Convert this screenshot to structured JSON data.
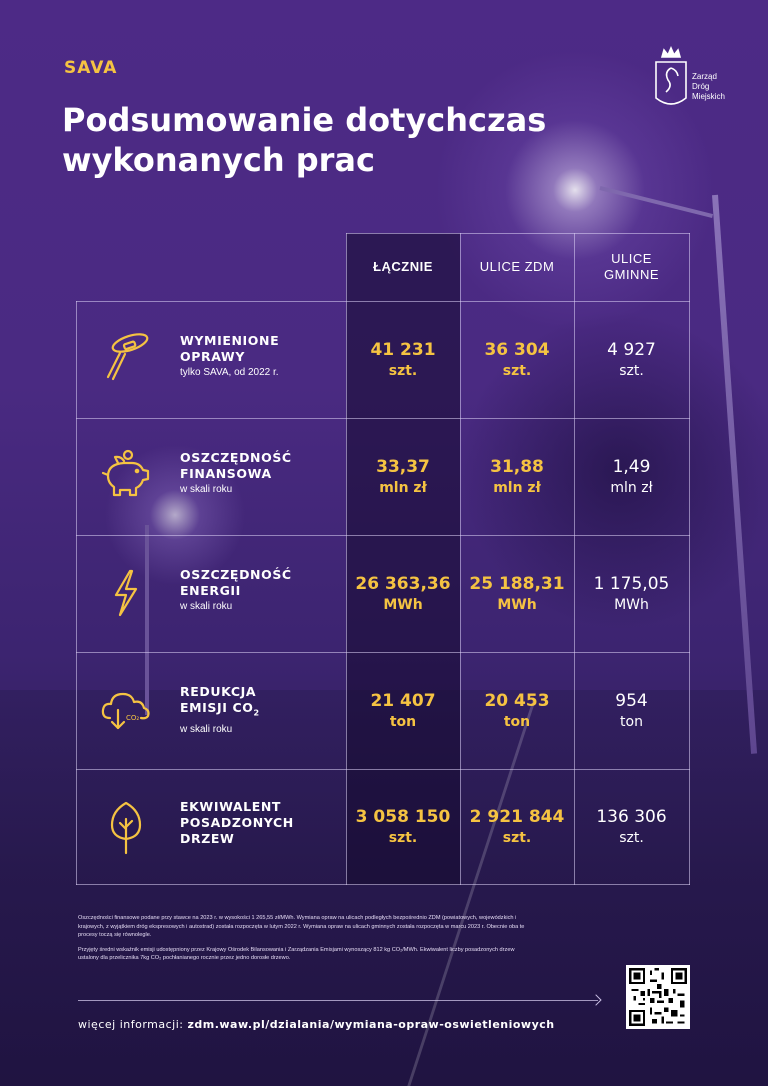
{
  "brand": "SAVA",
  "title_line1": "Podsumowanie dotychczas",
  "title_line2": "wykonanych prac",
  "logo": {
    "line1": "Zarząd",
    "line2": "Dróg",
    "line3": "Miejskich"
  },
  "columns": [
    {
      "line1": "ŁĄCZNIE",
      "line2": ""
    },
    {
      "line1": "ULICE ZDM",
      "line2": ""
    },
    {
      "line1": "ULICE",
      "line2": "GMINNE"
    }
  ],
  "rows": [
    {
      "icon": "street-lamp-icon",
      "label_line1": "WYMIENIONE",
      "label_line2": "OPRAWY",
      "sublabel": "tylko SAVA, od 2022 r.",
      "values": [
        {
          "value": "41 231",
          "unit": "szt."
        },
        {
          "value": "36 304",
          "unit": "szt."
        },
        {
          "value": "4 927",
          "unit": "szt."
        }
      ]
    },
    {
      "icon": "piggy-bank-icon",
      "label_line1": "OSZCZĘDNOŚĆ",
      "label_line2": "FINANSOWA",
      "sublabel": "w skali roku",
      "values": [
        {
          "value": "33,37",
          "unit": "mln zł"
        },
        {
          "value": "31,88",
          "unit": "mln zł"
        },
        {
          "value": "1,49",
          "unit": "mln zł"
        }
      ]
    },
    {
      "icon": "lightning-bolt-icon",
      "label_line1": "OSZCZĘDNOŚĆ",
      "label_line2": "ENERGII",
      "sublabel": "w skali roku",
      "values": [
        {
          "value": "26 363,36",
          "unit": "MWh"
        },
        {
          "value": "25 188,31",
          "unit": "MWh"
        },
        {
          "value": "1 175,05",
          "unit": "MWh"
        }
      ]
    },
    {
      "icon": "co2-cloud-icon",
      "label_line1": "REDUKCJA",
      "label_line2": "EMISJI CO",
      "label_sub": "2",
      "sublabel": "w skali roku",
      "values": [
        {
          "value": "21 407",
          "unit": "ton"
        },
        {
          "value": "20 453",
          "unit": "ton"
        },
        {
          "value": "954",
          "unit": "ton"
        }
      ]
    },
    {
      "icon": "tree-icon",
      "label_line1": "EKWIWALENT",
      "label_line2": "POSADZONYCH",
      "label_line3": "DRZEW",
      "sublabel": "",
      "values": [
        {
          "value": "3 058 150",
          "unit": "szt."
        },
        {
          "value": "2 921 844",
          "unit": "szt."
        },
        {
          "value": "136 306",
          "unit": "szt."
        }
      ]
    }
  ],
  "notes": {
    "p1": "Oszczędności finansowe podane przy stawce na 2023 r. w wysokości 1 265,55 zł/MWh. Wymiana opraw na ulicach podległych bezpośrednio ZDM (powiatowych, wojewódzkich i krajowych, z wyjątkiem dróg ekspresowych i autostrad) została rozpoczęta w lutym 2022 r. Wymiana opraw na ulicach gminnych została rozpoczęta w marcu 2023 r. Obecnie oba te procesy toczą się równolegle.",
    "p2": "Przyjęty średni wskaźnik emisji udostępniony przez Krajowy Ośrodek Bilansowania i Zarządzania Emisjami wynoszący 812 kg CO₂/MWh. Ekwiwalent liczby posadzonych drzew ustalony dla przelicznika 7kg CO₂ pochłanianego rocznie przez jedno dorosłe drzewo."
  },
  "more_info": {
    "label": "więcej informacji: ",
    "url": "zdm.waw.pl/dzialania/wymiana-opraw-oswietleniowych"
  },
  "colors": {
    "accent": "#f5c342",
    "background": "#4a2a82"
  }
}
